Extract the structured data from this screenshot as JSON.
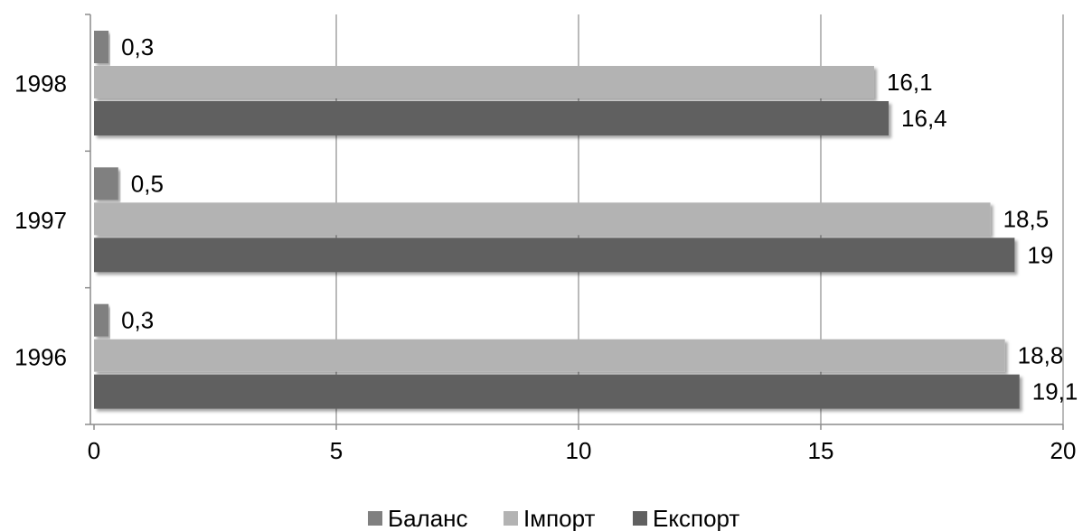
{
  "chart_data": {
    "type": "bar",
    "orientation": "horizontal",
    "categories": [
      "1996",
      "1997",
      "1998"
    ],
    "series": [
      {
        "name": "Експорт",
        "values": [
          19.1,
          19,
          16.4
        ],
        "labels": [
          "19,1",
          "19",
          "16,4"
        ],
        "color": "#606060"
      },
      {
        "name": "Імпорт",
        "values": [
          18.8,
          18.5,
          16.1
        ],
        "labels": [
          "18,8",
          "18,5",
          "16,1"
        ],
        "color": "#b3b3b3"
      },
      {
        "name": "Баланс",
        "values": [
          0.3,
          0.5,
          0.3
        ],
        "labels": [
          "0,3",
          "0,5",
          "0,3"
        ],
        "color": "#808080"
      }
    ],
    "legend_order": [
      "Баланс",
      "Імпорт",
      "Експорт"
    ],
    "xlim": [
      0,
      20
    ],
    "xticks": [
      0,
      5,
      10,
      15,
      20
    ],
    "xtick_labels": [
      "0",
      "5",
      "10",
      "15",
      "20"
    ],
    "grid": true,
    "legend_position": "bottom",
    "title": "",
    "xlabel": "",
    "ylabel": ""
  }
}
